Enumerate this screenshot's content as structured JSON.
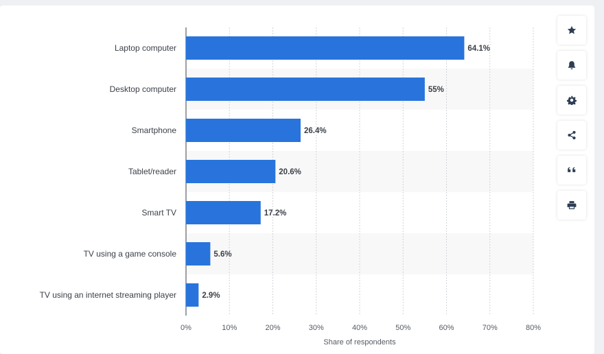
{
  "chart_data": {
    "type": "bar",
    "orientation": "horizontal",
    "categories": [
      "Laptop computer",
      "Desktop computer",
      "Smartphone",
      "Tablet/reader",
      "Smart TV",
      "TV using a game console",
      "TV using an internet streaming player"
    ],
    "values": [
      64.1,
      55,
      26.4,
      20.6,
      17.2,
      5.6,
      2.9
    ],
    "value_labels": [
      "64.1%",
      "55%",
      "26.4%",
      "20.6%",
      "17.2%",
      "5.6%",
      "2.9%"
    ],
    "xlabel": "Share of respondents",
    "xlim": [
      0,
      80
    ],
    "xticks": [
      "0%",
      "10%",
      "20%",
      "30%",
      "40%",
      "50%",
      "60%",
      "70%",
      "80%"
    ],
    "grid": true,
    "bar_color": "#2874dc"
  },
  "toolbar": {
    "items": [
      {
        "icon": "star-icon",
        "label": "favorite"
      },
      {
        "icon": "bell-icon",
        "label": "notifications"
      },
      {
        "icon": "gear-icon",
        "label": "settings"
      },
      {
        "icon": "share-icon",
        "label": "share"
      },
      {
        "icon": "quote-icon",
        "label": "cite"
      },
      {
        "icon": "print-icon",
        "label": "print"
      }
    ]
  }
}
